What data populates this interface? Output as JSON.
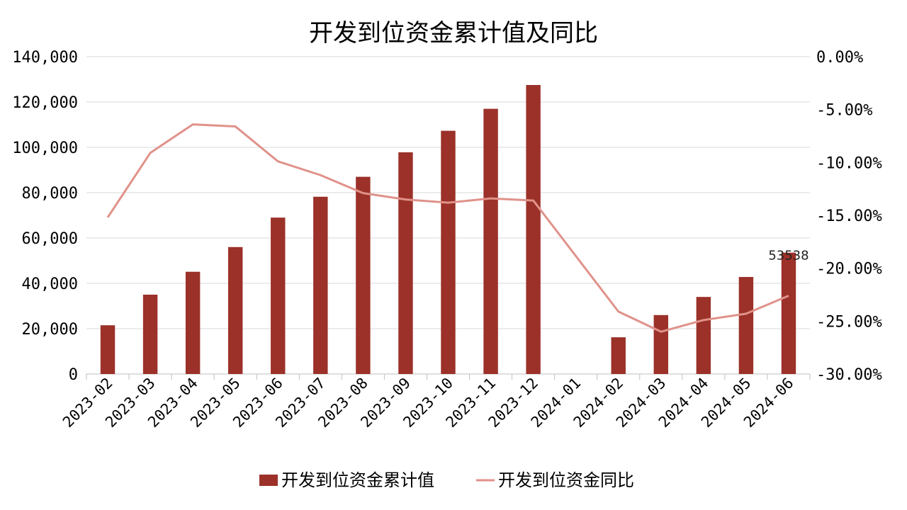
{
  "chart_data": {
    "type": "bar+line",
    "title": "开发到位资金累计值及同比",
    "categories": [
      "2023-02",
      "2023-03",
      "2023-04",
      "2023-05",
      "2023-06",
      "2023-07",
      "2023-08",
      "2023-09",
      "2023-10",
      "2023-11",
      "2023-12",
      "2024-01",
      "2024-02",
      "2024-03",
      "2024-04",
      "2024-05",
      "2024-06"
    ],
    "series": [
      {
        "name": "开发到位资金累计值",
        "kind": "bar",
        "axis": "left",
        "color": "#9b3129",
        "values": [
          21500,
          35000,
          45100,
          56000,
          69000,
          78200,
          87000,
          97800,
          107300,
          117000,
          127500,
          null,
          16200,
          26000,
          34000,
          42800,
          53538
        ]
      },
      {
        "name": "开发到位资金同比",
        "kind": "line",
        "axis": "right",
        "color": "#e0928a",
        "values": [
          -15.2,
          -9.1,
          -6.4,
          -6.6,
          -9.9,
          -11.2,
          -12.9,
          -13.5,
          -13.8,
          -13.4,
          -13.6,
          null,
          -24.1,
          -26.0,
          -24.9,
          -24.3,
          -22.6
        ]
      }
    ],
    "y_left": {
      "range": [
        0,
        140000
      ],
      "ticks": [
        "0",
        "20,000",
        "40,000",
        "60,000",
        "80,000",
        "100,000",
        "120,000",
        "140,000"
      ],
      "tick_values": [
        0,
        20000,
        40000,
        60000,
        80000,
        100000,
        120000,
        140000
      ]
    },
    "y_right": {
      "range": [
        -30,
        0
      ],
      "ticks": [
        "-30.00%",
        "-25.00%",
        "-20.00%",
        "-15.00%",
        "-10.00%",
        "-5.00%",
        "0.00%"
      ],
      "tick_values": [
        -30,
        -25,
        -20,
        -15,
        -10,
        -5,
        0
      ]
    },
    "data_labels": [
      {
        "category": "2024-06",
        "series": "开发到位资金累计值",
        "text": "53538"
      }
    ],
    "grid": true,
    "legend_position": "bottom"
  }
}
